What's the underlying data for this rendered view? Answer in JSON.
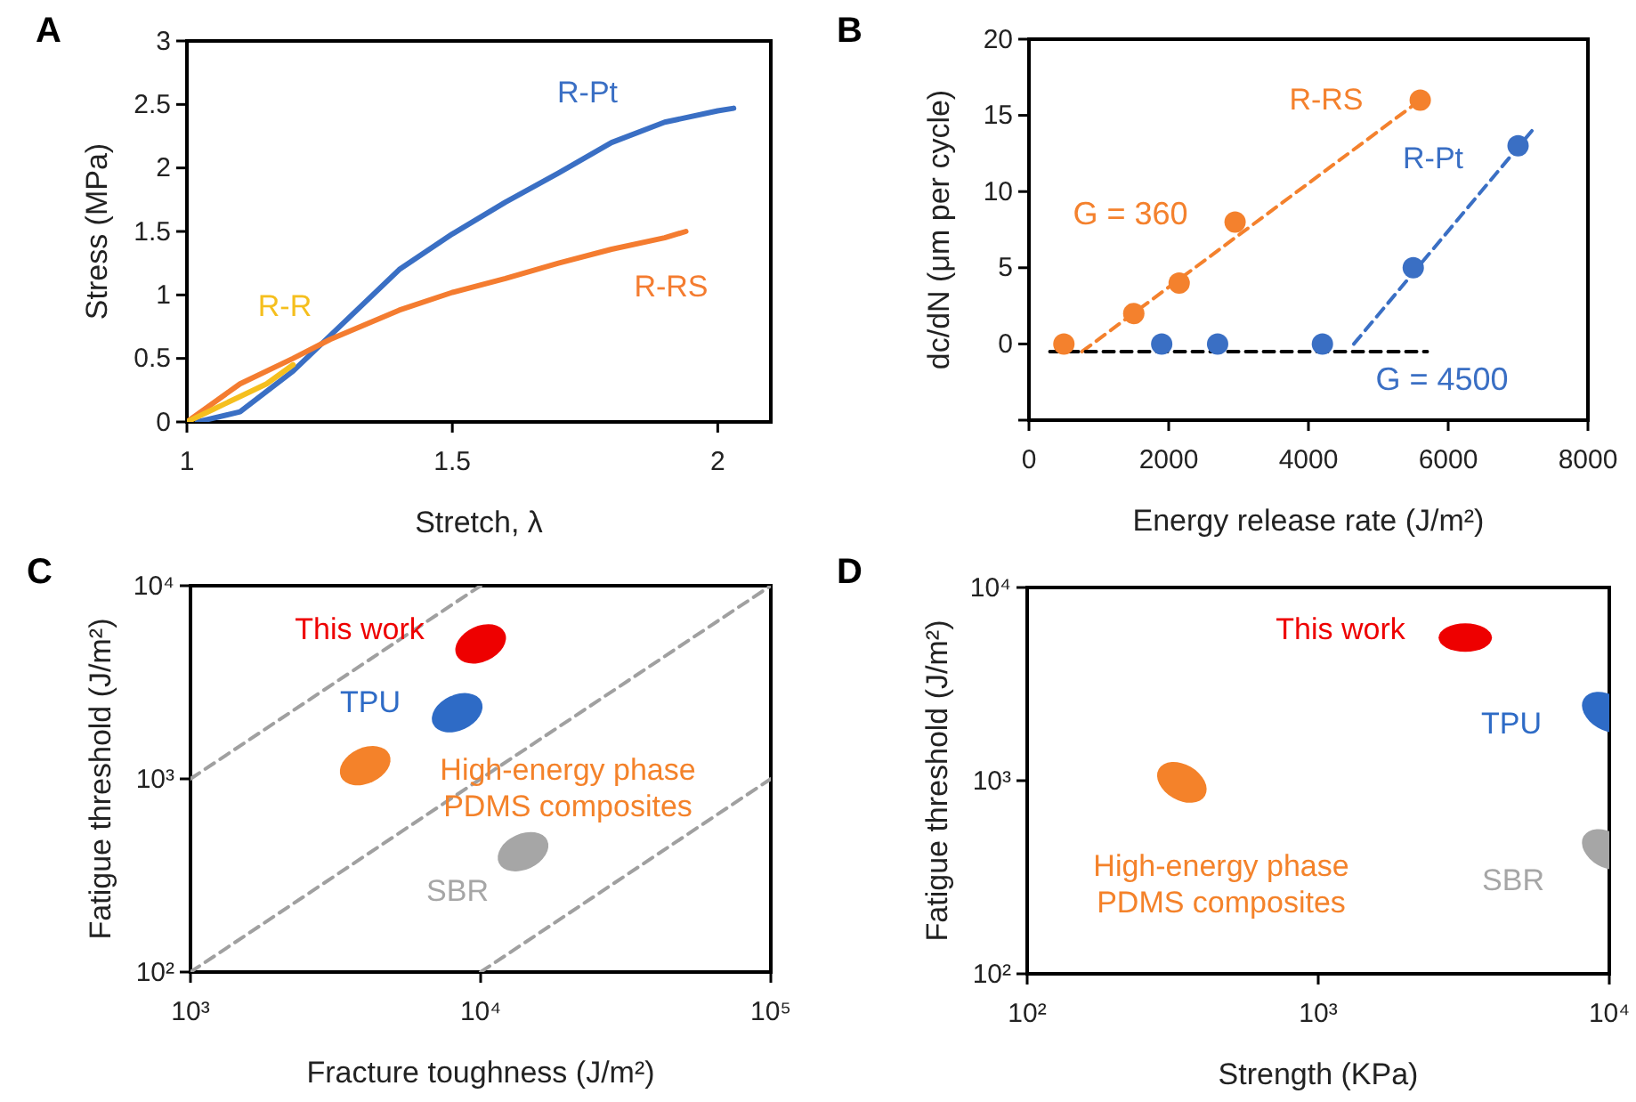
{
  "chart_data": [
    {
      "type": "line",
      "xlabel": "Stretch, λ",
      "ylabel": "Stress (MPa)",
      "annotations": [
        "A"
      ],
      "xlim": [
        1,
        2.1
      ],
      "xticks": [
        1,
        1.5,
        2
      ],
      "ylim": [
        0,
        3
      ],
      "yticks": [
        0,
        0.5,
        1,
        1.5,
        2,
        2.5,
        3
      ],
      "grid": false,
      "legend": false,
      "line_style": "solid",
      "series": [
        {
          "name": "R-Pt",
          "color": "#3a6fc4",
          "x": [
            1.02,
            1.1,
            1.2,
            1.25,
            1.3,
            1.4,
            1.5,
            1.6,
            1.7,
            1.8,
            1.9,
            2.0,
            2.03
          ],
          "values": [
            0,
            0.08,
            0.4,
            0.6,
            0.8,
            1.2,
            1.48,
            1.73,
            1.96,
            2.2,
            2.36,
            2.45,
            2.47
          ]
        },
        {
          "name": "R-RS",
          "color": "#f47c30",
          "x": [
            1.0,
            1.1,
            1.2,
            1.27,
            1.4,
            1.5,
            1.6,
            1.7,
            1.8,
            1.9,
            1.94
          ],
          "values": [
            0,
            0.3,
            0.5,
            0.65,
            0.88,
            1.02,
            1.13,
            1.25,
            1.36,
            1.45,
            1.5
          ]
        },
        {
          "name": "R-R",
          "color": "#f5bf1e",
          "x": [
            1.0,
            1.05,
            1.1,
            1.15,
            1.2
          ],
          "values": [
            0,
            0.1,
            0.2,
            0.3,
            0.45
          ]
        }
      ]
    },
    {
      "type": "scatter",
      "xlabel": "Energy release rate (J/m²)",
      "ylabel": "dc/dN (μm per cycle)",
      "annotations": [
        "B",
        "G = 360",
        "G = 4500"
      ],
      "xlim": [
        0,
        8000
      ],
      "xticks": [
        0,
        2000,
        4000,
        6000,
        8000
      ],
      "ylim": [
        -5,
        20
      ],
      "yticks": [
        {
          "value": -5,
          "label": null
        },
        0,
        5,
        10,
        15,
        20
      ],
      "grid": false,
      "legend": false,
      "marker": "circle",
      "series": [
        {
          "name": "R-RS",
          "color": "#f4812d",
          "x": [
            500,
            1500,
            2150,
            2950,
            5600
          ],
          "values": [
            0,
            2,
            4,
            8,
            16
          ]
        },
        {
          "name": "R-Pt",
          "color": "#3a6fc4",
          "x": [
            1900,
            2700,
            4200,
            5500,
            7000
          ],
          "values": [
            0,
            0,
            0,
            5,
            13
          ]
        },
        {
          "type": "line",
          "marker": "none",
          "line_style": "dashed",
          "color": "#f4812d",
          "x": [
            760,
            5600
          ],
          "values": [
            -0.5,
            16
          ]
        },
        {
          "type": "line",
          "marker": "none",
          "line_style": "dashed",
          "color": "#3a6fc4",
          "x": [
            4650,
            7200
          ],
          "values": [
            0,
            14
          ]
        },
        {
          "type": "line",
          "marker": "none",
          "line_style": "dashed",
          "color": "#000000",
          "x": [
            300,
            5700
          ],
          "values": [
            -0.5,
            -0.5
          ]
        }
      ]
    },
    {
      "type": "scatter",
      "xlabel": "Fracture toughness (J/m²)",
      "ylabel": "Fatigue threshold (J/m²)",
      "annotations": [
        "C"
      ],
      "log": "xy",
      "xlim": [
        1000,
        100000
      ],
      "xticks": [
        {
          "value": 1000,
          "label": "10³"
        },
        {
          "value": 10000,
          "label": "10⁴"
        },
        {
          "value": 100000,
          "label": "10⁵"
        }
      ],
      "ylim": [
        100,
        10000
      ],
      "yticks": [
        {
          "value": 100,
          "label": "10²"
        },
        {
          "value": 1000,
          "label": "10³"
        },
        {
          "value": 10000,
          "label": "10⁴"
        }
      ],
      "grid": false,
      "legend": false,
      "series": [
        {
          "name": "This work",
          "color": "#ee0000",
          "x": [
            10000
          ],
          "values": [
            5000
          ]
        },
        {
          "name": "TPU",
          "color": "#2e6bc6",
          "x": [
            8300
          ],
          "values": [
            2200
          ]
        },
        {
          "name": "High-energy phase PDMS composites",
          "color": "#f4822a",
          "x": [
            4000
          ],
          "values": [
            1170
          ]
        },
        {
          "name": "SBR",
          "color": "#a6a6a6",
          "x": [
            14000
          ],
          "values": [
            420
          ]
        },
        {
          "type": "line",
          "line_style": "dashed",
          "color": "#a0a0a0",
          "x": [
            1000,
            10000
          ],
          "values": [
            1000,
            10000
          ]
        },
        {
          "type": "line",
          "line_style": "dashed",
          "color": "#a0a0a0",
          "x": [
            1000,
            100000
          ],
          "values": [
            100,
            10000
          ]
        },
        {
          "type": "line",
          "line_style": "dashed",
          "color": "#a0a0a0",
          "x": [
            10000,
            100000
          ],
          "values": [
            100,
            1000
          ]
        }
      ]
    },
    {
      "type": "scatter",
      "xlabel": "Strength (KPa)",
      "ylabel": "Fatigue threshold (J/m²)",
      "annotations": [
        "D"
      ],
      "log": "xy",
      "xlim": [
        100,
        10000
      ],
      "xticks": [
        {
          "value": 100,
          "label": "10²"
        },
        {
          "value": 1000,
          "label": "10³"
        },
        {
          "value": 10000,
          "label": "10⁴"
        }
      ],
      "ylim": [
        100,
        10000
      ],
      "yticks": [
        {
          "value": 100,
          "label": "10²"
        },
        {
          "value": 1000,
          "label": "10³"
        },
        {
          "value": 10000,
          "label": "10⁴"
        }
      ],
      "grid": false,
      "legend": false,
      "series": [
        {
          "name": "This work",
          "color": "#ee0000",
          "x": [
            3200
          ],
          "values": [
            5500
          ]
        },
        {
          "name": "TPU",
          "color": "#2e6bc6",
          "x": [
            9800
          ],
          "values": [
            2260
          ]
        },
        {
          "name": "High-energy phase PDMS composites",
          "color": "#f4822a",
          "x": [
            340
          ],
          "values": [
            980
          ]
        },
        {
          "name": "SBR",
          "color": "#a6a6a6",
          "x": [
            9800
          ],
          "values": [
            440
          ]
        }
      ]
    }
  ]
}
